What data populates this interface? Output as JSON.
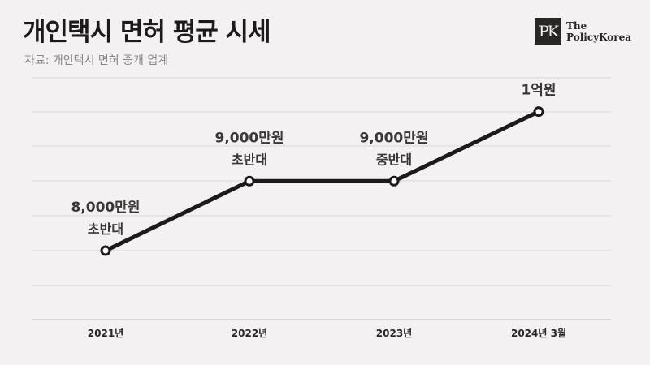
{
  "header": {
    "title": "개인택시 면허 평균 시세",
    "source": "자료: 개인택시 면허 중개 업계"
  },
  "logo": {
    "mark": "PK",
    "line1": "The",
    "line2": "PolicyKorea"
  },
  "colors": {
    "background": "#f3f1f1",
    "line": "#1c1a1a",
    "grid": "#d9d6d6",
    "marker_fill": "#ffffff"
  },
  "chart_data": {
    "type": "line",
    "title": "개인택시 면허 평균 시세",
    "categories": [
      "2021년",
      "2022년",
      "2023년",
      "2024년 3월"
    ],
    "values": [
      8000,
      9000,
      9000,
      10000
    ],
    "point_labels": [
      {
        "value": "8,000만원",
        "note": "초반대"
      },
      {
        "value": "9,000만원",
        "note": "초반대"
      },
      {
        "value": "9,000만원",
        "note": "중반대"
      },
      {
        "value": "1억원",
        "note": ""
      }
    ],
    "grid": true,
    "legend": "none",
    "xlabel": "",
    "ylabel": ""
  }
}
